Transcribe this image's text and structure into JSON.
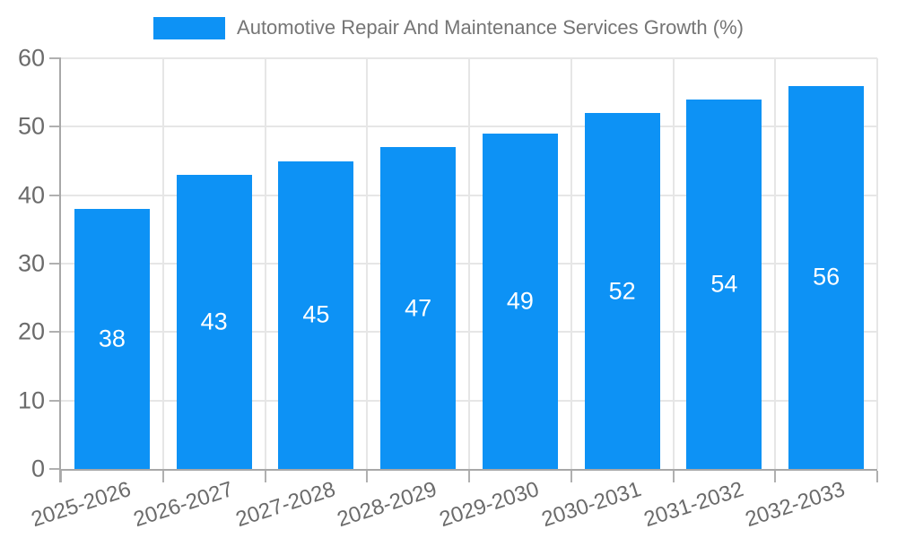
{
  "legend": {
    "label": "Automotive Repair And Maintenance Services Growth (%)",
    "swatch_color": "#0d92f5"
  },
  "chart_data": {
    "type": "bar",
    "title": "Automotive Repair And Maintenance Services Growth (%)",
    "categories": [
      "2025-2026",
      "2026-2027",
      "2027-2028",
      "2028-2029",
      "2029-2030",
      "2030-2031",
      "2031-2032",
      "2032-2033"
    ],
    "values": [
      38,
      43,
      45,
      47,
      49,
      52,
      54,
      56
    ],
    "xlabel": "",
    "ylabel": "",
    "ylim": [
      0,
      60
    ],
    "yticks": [
      0,
      10,
      20,
      30,
      40,
      50,
      60
    ],
    "grid": true,
    "legend_position": "top-center",
    "bar_color": "#0d92f5",
    "value_label_color": "#ffffff",
    "axis_label_color": "#6b6b6b",
    "title_color": "#757575",
    "gridline_color": "#e6e6e6",
    "axis_line_color": "#a8a8a8"
  }
}
